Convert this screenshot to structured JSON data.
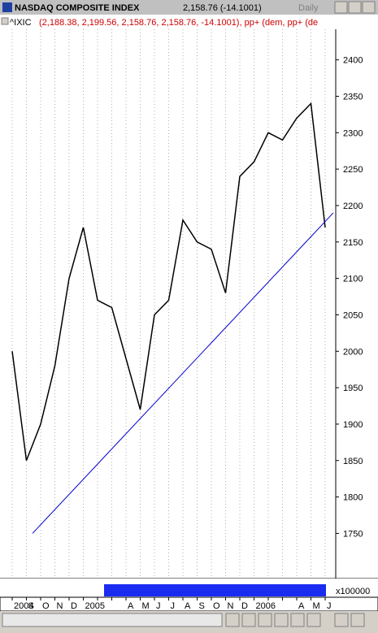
{
  "window": {
    "title": "NASDAQ COMPOSITE INDEX",
    "quote": "2,158.76 (-14.1001)",
    "period": "Daily"
  },
  "legend": {
    "symbol": "^IXIC",
    "values": "(2,188.38, 2,199.56, 2,158.76, 2,158.76, -14.1001), pp+ (dem, pp+ (de"
  },
  "volume": {
    "unit": "x100000"
  },
  "chart_data": {
    "type": "line",
    "categories": [
      "2004",
      "S",
      "O",
      "N",
      "D",
      "2005",
      null,
      null,
      "A",
      "M",
      "J",
      "J",
      "A",
      "S",
      "O",
      "N",
      "D",
      "2006",
      null,
      null,
      "A",
      "M",
      "J"
    ],
    "series": [
      {
        "name": "^IXIC",
        "color": "#000000",
        "values": [
          2000,
          1850,
          1900,
          1980,
          2100,
          2170,
          2070,
          2060,
          1990,
          1920,
          2050,
          2070,
          2180,
          2150,
          2140,
          2080,
          2240,
          2260,
          2300,
          2290,
          2320,
          2340,
          2170
        ]
      }
    ],
    "ylim": [
      1688,
      2442
    ],
    "yticks": [
      1750,
      1800,
      1850,
      1900,
      1950,
      2000,
      2050,
      2100,
      2150,
      2200,
      2250,
      2300,
      2350,
      2400
    ],
    "grid": true,
    "trendline": {
      "values": [
        1750,
        2190
      ],
      "color": "#0000cc"
    }
  }
}
